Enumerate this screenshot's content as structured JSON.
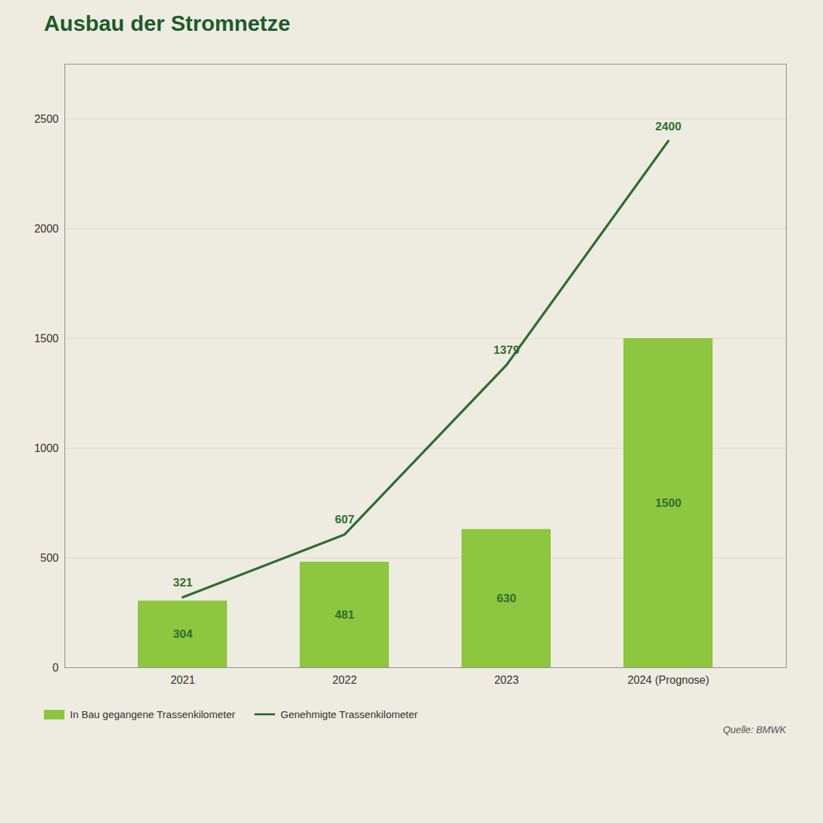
{
  "chart_data": {
    "type": "bar",
    "title": "Ausbau der Stromnetze",
    "categories": [
      "2021",
      "2022",
      "2023",
      "2024 (Prognose)"
    ],
    "series": [
      {
        "name": "In Bau gegangene Trassenkilometer",
        "type": "bar",
        "color": "#8dc63f",
        "values": [
          304,
          481,
          630,
          1500
        ]
      },
      {
        "name": "Genehmigte Trassenkilometer",
        "type": "line",
        "color": "#2d6e2d",
        "values": [
          321,
          607,
          1379,
          2400
        ]
      }
    ],
    "ylim": [
      0,
      2750
    ],
    "yticks": [
      0,
      500,
      1000,
      1500,
      2000,
      2500
    ],
    "grid": true,
    "data_labels": true,
    "legend": "bottom",
    "annotations": [
      "Quelle: BMWK"
    ]
  }
}
